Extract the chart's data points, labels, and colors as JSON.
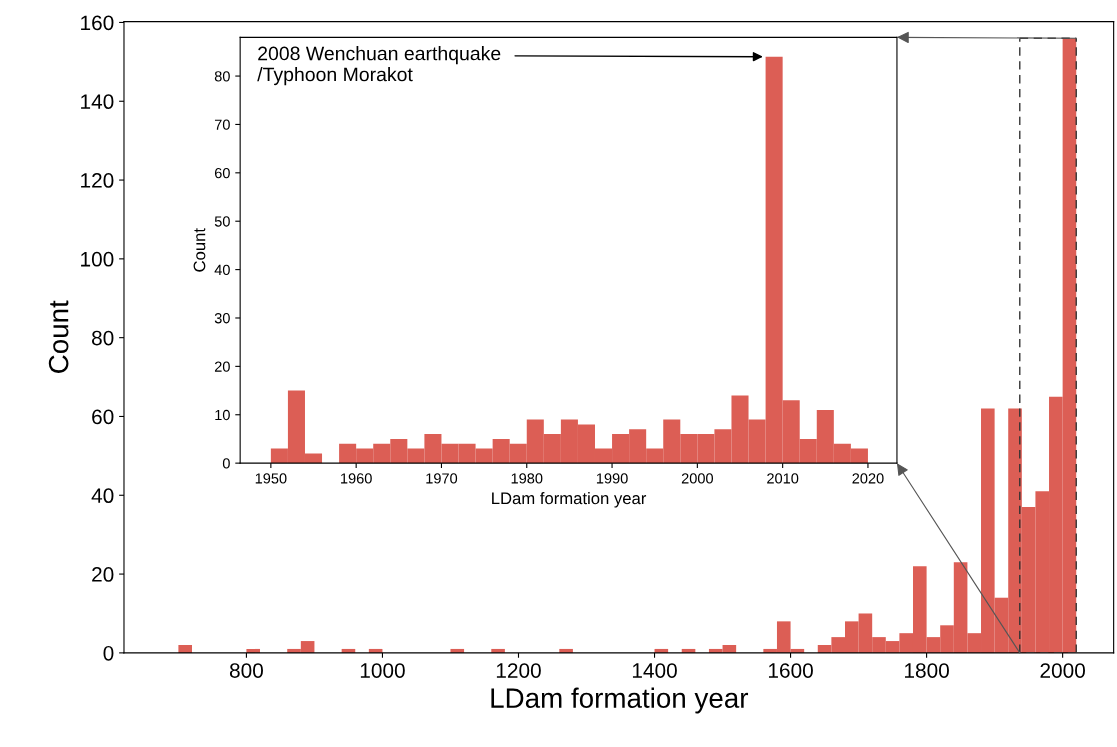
{
  "chart_data": [
    {
      "type": "histogram",
      "xlabel": "LDam formation year",
      "ylabel": "Count",
      "color": "#dc5e55",
      "bins": [
        700,
        720,
        740,
        760,
        780,
        800,
        820,
        840,
        860,
        880,
        900,
        920,
        940,
        960,
        980,
        1000,
        1020,
        1040,
        1060,
        1080,
        1100,
        1120,
        1140,
        1160,
        1180,
        1200,
        1220,
        1240,
        1260,
        1280,
        1300,
        1320,
        1340,
        1360,
        1380,
        1400,
        1420,
        1440,
        1460,
        1480,
        1500,
        1520,
        1540,
        1560,
        1580,
        1600,
        1620,
        1640,
        1660,
        1680,
        1700,
        1720,
        1740,
        1760,
        1780,
        1800,
        1820,
        1840,
        1860,
        1880,
        1900,
        1920,
        1940,
        1960,
        1980,
        2000,
        2020
      ],
      "values": [
        2,
        0,
        0,
        0,
        0,
        1,
        0,
        0,
        1,
        3,
        0,
        0,
        1,
        0,
        1,
        0,
        0,
        0,
        0,
        0,
        1,
        0,
        0,
        1,
        0,
        0,
        0,
        0,
        1,
        0,
        0,
        0,
        0,
        0,
        0,
        1,
        0,
        1,
        0,
        1,
        2,
        0,
        0,
        1,
        8,
        1,
        0,
        2,
        4,
        8,
        10,
        4,
        3,
        5,
        22,
        4,
        7,
        23,
        5,
        62,
        14,
        62,
        37,
        41,
        65,
        156
      ],
      "ref_lines": [
        {
          "axis": "x",
          "value": 1937,
          "line_style": "dashed",
          "color": "#333333"
        },
        {
          "axis": "x",
          "value": 2020,
          "line_style": "dashed",
          "color": "#333333"
        }
      ],
      "xlim": [
        620,
        2075
      ],
      "ylim": [
        0,
        160.2
      ],
      "xticks": [
        800,
        1000,
        1200,
        1400,
        1600,
        1800,
        2000
      ],
      "yticks": [
        0,
        20,
        40,
        60,
        80,
        100,
        120,
        140,
        160
      ],
      "grid": false,
      "legend": false
    },
    {
      "type": "histogram",
      "xlabel": "LDam formation year",
      "ylabel": "Count",
      "color": "#dc5e55",
      "bins": [
        1950,
        1952,
        1954,
        1956,
        1958,
        1960,
        1962,
        1964,
        1966,
        1968,
        1970,
        1972,
        1974,
        1976,
        1978,
        1980,
        1982,
        1984,
        1986,
        1988,
        1990,
        1992,
        1994,
        1996,
        1998,
        2000,
        2002,
        2004,
        2006,
        2008,
        2010,
        2012,
        2014,
        2016,
        2018,
        2020
      ],
      "values": [
        3,
        15,
        2,
        0,
        4,
        3,
        4,
        5,
        3,
        6,
        4,
        4,
        3,
        5,
        4,
        9,
        6,
        9,
        8,
        3,
        6,
        7,
        3,
        9,
        6,
        6,
        7,
        14,
        9,
        84,
        13,
        5,
        11,
        4,
        3
      ],
      "xlim": [
        1946.4,
        2023.4
      ],
      "ylim": [
        0,
        88
      ],
      "xticks": [
        1950,
        1960,
        1970,
        1980,
        1990,
        2000,
        2010,
        2020
      ],
      "yticks": [
        0,
        10,
        20,
        30,
        40,
        50,
        60,
        70,
        80
      ],
      "grid": false,
      "legend": false,
      "annotations": [
        {
          "text": "2008 Wenchuan earthquake\n/Typhoon Morakot",
          "x": 2008,
          "y": 84
        }
      ]
    }
  ]
}
